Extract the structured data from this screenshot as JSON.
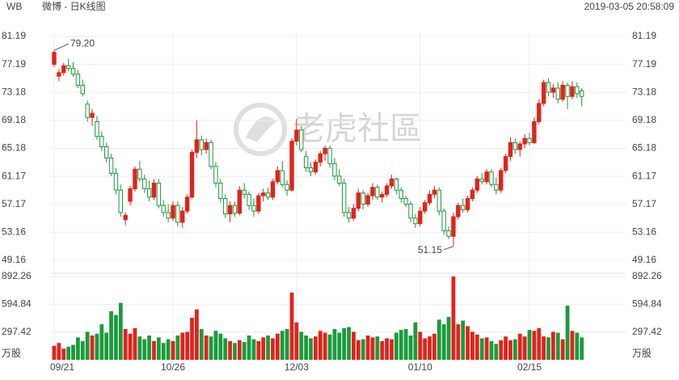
{
  "header": {
    "symbol": "WB",
    "title": "微博 - 日K线图",
    "datetime": "2019-03-05 20:58:09"
  },
  "watermark": "老虎社區",
  "chart_data": [
    {
      "type": "candlestick",
      "up_color": "#e2231a",
      "down_color": "#1a9b3c",
      "grid": true,
      "ylim": [
        49.16,
        81.19
      ],
      "yticks": [
        49.16,
        53.16,
        57.17,
        61.17,
        65.18,
        69.18,
        73.18,
        77.19,
        81.19
      ],
      "high_label": "79.20",
      "low_label": "51.15",
      "categories": [
        "09/21",
        null,
        null,
        null,
        null,
        null,
        null,
        null,
        null,
        null,
        null,
        null,
        null,
        null,
        null,
        null,
        null,
        null,
        null,
        null,
        null,
        null,
        null,
        null,
        null,
        "10/26",
        null,
        null,
        null,
        null,
        null,
        null,
        null,
        null,
        null,
        null,
        null,
        null,
        null,
        null,
        null,
        null,
        null,
        null,
        null,
        null,
        null,
        null,
        null,
        null,
        null,
        "12/03",
        null,
        null,
        null,
        null,
        null,
        null,
        null,
        null,
        null,
        null,
        null,
        null,
        null,
        null,
        null,
        null,
        null,
        null,
        null,
        null,
        null,
        null,
        null,
        null,
        null,
        "01/10",
        null,
        null,
        null,
        null,
        null,
        null,
        null,
        null,
        null,
        null,
        null,
        null,
        null,
        null,
        null,
        null,
        null,
        null,
        null,
        null,
        null,
        null,
        "02/15",
        null,
        null,
        null,
        null,
        null,
        null,
        null,
        null,
        null,
        null,
        null
      ],
      "candles": [
        [
          77.2,
          79.2,
          76.8,
          78.9
        ],
        [
          75.5,
          76.5,
          74.8,
          76.0
        ],
        [
          76.0,
          77.4,
          75.6,
          77.0
        ],
        [
          77.0,
          78.0,
          76.2,
          76.6
        ],
        [
          76.6,
          77.5,
          75.4,
          75.8
        ],
        [
          75.8,
          76.4,
          73.8,
          74.2
        ],
        [
          74.2,
          75.0,
          72.6,
          73.0
        ],
        [
          71.5,
          72.0,
          69.0,
          69.6
        ],
        [
          69.6,
          70.8,
          68.4,
          70.2
        ],
        [
          69.0,
          69.8,
          66.4,
          66.9
        ],
        [
          66.9,
          67.6,
          64.8,
          65.4
        ],
        [
          65.4,
          66.0,
          63.2,
          63.8
        ],
        [
          63.8,
          64.4,
          61.2,
          61.6
        ],
        [
          61.6,
          62.4,
          58.6,
          59.2
        ],
        [
          59.2,
          60.0,
          55.4,
          56.0
        ],
        [
          55.0,
          56.0,
          54.2,
          55.6
        ],
        [
          57.6,
          59.8,
          57.0,
          59.4
        ],
        [
          59.4,
          62.6,
          59.0,
          62.2
        ],
        [
          62.2,
          63.4,
          60.4,
          60.8
        ],
        [
          60.8,
          61.4,
          58.8,
          59.4
        ],
        [
          59.4,
          60.6,
          57.6,
          58.2
        ],
        [
          58.2,
          60.8,
          57.8,
          60.2
        ],
        [
          60.2,
          60.8,
          56.6,
          57.0
        ],
        [
          57.0,
          57.8,
          55.4,
          56.0
        ],
        [
          56.0,
          57.2,
          54.6,
          55.2
        ],
        [
          55.2,
          57.6,
          54.8,
          57.0
        ],
        [
          57.0,
          57.6,
          54.0,
          54.6
        ],
        [
          54.6,
          56.8,
          53.8,
          56.2
        ],
        [
          56.2,
          58.6,
          55.8,
          58.2
        ],
        [
          58.2,
          65.0,
          58.0,
          64.6
        ],
        [
          64.6,
          69.2,
          63.8,
          66.4
        ],
        [
          66.4,
          67.0,
          64.2,
          65.0
        ],
        [
          65.0,
          66.6,
          64.4,
          66.0
        ],
        [
          66.0,
          66.4,
          62.2,
          62.6
        ],
        [
          62.6,
          63.2,
          59.6,
          60.2
        ],
        [
          60.2,
          60.8,
          57.4,
          58.0
        ],
        [
          58.0,
          58.6,
          55.2,
          55.8
        ],
        [
          55.8,
          57.6,
          54.6,
          57.0
        ],
        [
          57.0,
          57.6,
          55.4,
          55.9
        ],
        [
          55.9,
          59.8,
          55.6,
          59.2
        ],
        [
          59.2,
          60.2,
          58.0,
          58.6
        ],
        [
          58.6,
          59.0,
          56.4,
          57.0
        ],
        [
          57.0,
          58.0,
          55.4,
          56.2
        ],
        [
          56.2,
          58.8,
          55.8,
          58.4
        ],
        [
          58.4,
          59.4,
          57.6,
          58.8
        ],
        [
          58.8,
          59.6,
          57.8,
          58.2
        ],
        [
          58.2,
          60.8,
          57.8,
          60.4
        ],
        [
          60.4,
          62.6,
          60.0,
          62.0
        ],
        [
          62.0,
          63.4,
          59.6,
          60.0
        ],
        [
          60.0,
          60.6,
          58.4,
          59.2
        ],
        [
          59.2,
          66.6,
          59.0,
          66.2
        ],
        [
          66.2,
          69.4,
          65.6,
          67.8
        ],
        [
          67.8,
          68.4,
          64.6,
          65.0
        ],
        [
          64.0,
          64.8,
          61.8,
          62.4
        ],
        [
          62.4,
          63.2,
          61.2,
          61.8
        ],
        [
          61.8,
          63.6,
          61.4,
          63.2
        ],
        [
          63.2,
          64.8,
          62.6,
          64.4
        ],
        [
          64.4,
          65.6,
          63.4,
          65.2
        ],
        [
          65.2,
          65.6,
          62.4,
          63.0
        ],
        [
          63.0,
          63.8,
          60.6,
          61.2
        ],
        [
          61.2,
          62.2,
          59.8,
          60.2
        ],
        [
          60.2,
          60.8,
          55.4,
          56.0
        ],
        [
          56.0,
          56.8,
          54.6,
          55.2
        ],
        [
          55.2,
          57.2,
          54.8,
          56.6
        ],
        [
          56.6,
          59.4,
          56.2,
          58.8
        ],
        [
          58.8,
          59.2,
          56.4,
          57.2
        ],
        [
          57.2,
          58.8,
          56.8,
          58.4
        ],
        [
          58.4,
          60.2,
          57.8,
          59.6
        ],
        [
          59.6,
          60.0,
          57.8,
          58.2
        ],
        [
          58.2,
          59.0,
          57.4,
          58.6
        ],
        [
          58.6,
          60.2,
          58.2,
          59.8
        ],
        [
          59.8,
          61.4,
          59.4,
          60.8
        ],
        [
          60.8,
          61.0,
          58.6,
          59.2
        ],
        [
          59.2,
          59.6,
          57.4,
          58.0
        ],
        [
          58.0,
          58.4,
          56.8,
          57.2
        ],
        [
          57.2,
          57.6,
          54.6,
          55.2
        ],
        [
          55.2,
          55.8,
          53.8,
          54.4
        ],
        [
          54.4,
          56.8,
          54.0,
          56.2
        ],
        [
          56.2,
          57.8,
          55.8,
          57.4
        ],
        [
          57.4,
          59.2,
          57.0,
          58.6
        ],
        [
          58.6,
          59.8,
          58.0,
          59.2
        ],
        [
          59.2,
          59.6,
          55.6,
          56.2
        ],
        [
          56.2,
          56.6,
          52.8,
          53.4
        ],
        [
          53.4,
          54.0,
          52.2,
          52.6
        ],
        [
          52.6,
          56.0,
          51.15,
          55.4
        ],
        [
          55.4,
          57.4,
          55.0,
          57.0
        ],
        [
          57.0,
          58.0,
          56.0,
          56.4
        ],
        [
          56.4,
          58.4,
          56.0,
          58.0
        ],
        [
          58.0,
          59.6,
          57.6,
          59.2
        ],
        [
          59.2,
          61.2,
          58.8,
          60.8
        ],
        [
          60.8,
          61.6,
          60.0,
          60.4
        ],
        [
          60.4,
          62.2,
          60.0,
          61.8
        ],
        [
          61.8,
          62.2,
          59.6,
          60.0
        ],
        [
          60.0,
          61.0,
          58.6,
          59.2
        ],
        [
          59.2,
          62.4,
          58.8,
          62.0
        ],
        [
          62.0,
          64.4,
          61.6,
          64.0
        ],
        [
          64.0,
          66.8,
          63.4,
          66.0
        ],
        [
          66.0,
          66.6,
          64.4,
          65.0
        ],
        [
          65.0,
          66.2,
          64.0,
          65.8
        ],
        [
          65.8,
          67.2,
          65.2,
          66.6
        ],
        [
          66.6,
          67.4,
          65.6,
          66.0
        ],
        [
          66.0,
          69.6,
          65.8,
          69.0
        ],
        [
          69.0,
          72.2,
          68.6,
          71.6
        ],
        [
          71.6,
          75.0,
          71.2,
          74.6
        ],
        [
          74.6,
          75.2,
          72.6,
          73.2
        ],
        [
          73.2,
          74.4,
          72.4,
          73.8
        ],
        [
          73.8,
          74.6,
          71.6,
          72.2
        ],
        [
          72.2,
          74.8,
          71.8,
          74.2
        ],
        [
          74.2,
          74.6,
          70.8,
          72.6
        ],
        [
          72.6,
          74.8,
          72.2,
          74.0
        ],
        [
          74.0,
          74.6,
          72.4,
          73.0
        ],
        [
          73.4,
          73.8,
          71.2,
          72.6
        ]
      ]
    },
    {
      "type": "bar",
      "unit": "万股",
      "ylim": [
        0,
        892.26
      ],
      "yticks": [
        297.42,
        594.84,
        892.26
      ],
      "values": [
        150,
        180,
        120,
        140,
        160,
        240,
        200,
        300,
        260,
        280,
        380,
        290,
        520,
        480,
        610,
        330,
        280,
        340,
        250,
        220,
        260,
        200,
        240,
        180,
        220,
        200,
        260,
        290,
        300,
        450,
        540,
        330,
        260,
        250,
        310,
        280,
        230,
        200,
        180,
        210,
        190,
        260,
        220,
        200,
        240,
        260,
        230,
        280,
        310,
        330,
        720,
        400,
        300,
        260,
        230,
        250,
        310,
        290,
        270,
        330,
        290,
        340,
        350,
        300,
        210,
        220,
        260,
        240,
        250,
        200,
        230,
        220,
        290,
        320,
        330,
        260,
        400,
        300,
        230,
        250,
        280,
        430,
        380,
        460,
        892.26,
        380,
        420,
        360,
        300,
        270,
        230,
        240,
        200,
        170,
        210,
        250,
        210,
        220,
        280,
        250,
        320,
        310,
        340,
        250,
        240,
        300,
        290,
        220,
        580,
        310,
        290,
        240
      ]
    }
  ]
}
